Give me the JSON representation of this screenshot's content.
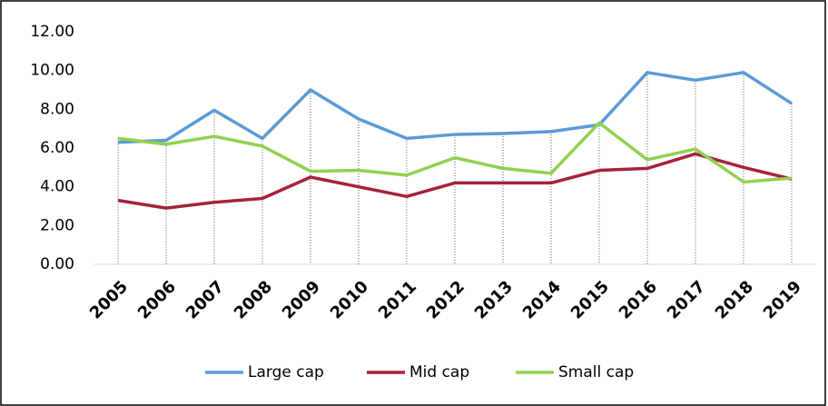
{
  "chart_data": {
    "type": "line",
    "categories": [
      "2005",
      "2006",
      "2007",
      "2008",
      "2009",
      "2010",
      "2011",
      "2012",
      "2013",
      "2014",
      "2015",
      "2016",
      "2017",
      "2018",
      "2019"
    ],
    "series": [
      {
        "name": "Large cap",
        "color": "#5b9bd5",
        "values": [
          6.3,
          6.4,
          7.95,
          6.5,
          9.0,
          7.5,
          6.5,
          6.7,
          6.75,
          6.85,
          7.2,
          9.9,
          9.5,
          9.9,
          8.3
        ]
      },
      {
        "name": "Mid cap",
        "color": "#a5233b",
        "values": [
          3.3,
          2.9,
          3.2,
          3.4,
          4.5,
          4.0,
          3.5,
          4.2,
          4.2,
          4.2,
          4.85,
          4.95,
          5.7,
          5.0,
          4.4
        ]
      },
      {
        "name": "Small cap",
        "color": "#92d050",
        "values": [
          6.5,
          6.2,
          6.6,
          6.1,
          4.8,
          4.85,
          4.6,
          5.5,
          4.95,
          4.7,
          7.3,
          5.4,
          5.95,
          4.25,
          4.45
        ]
      }
    ],
    "ylim": [
      0,
      12
    ],
    "yticks": [
      {
        "value": 0,
        "label": "0.00"
      },
      {
        "value": 2,
        "label": "2.00"
      },
      {
        "value": 4,
        "label": "4.00"
      },
      {
        "value": 6,
        "label": "6.00"
      },
      {
        "value": 8,
        "label": "8.00"
      },
      {
        "value": 10,
        "label": "10.00"
      },
      {
        "value": 12,
        "label": "12.00"
      }
    ],
    "legend": "bottom"
  }
}
